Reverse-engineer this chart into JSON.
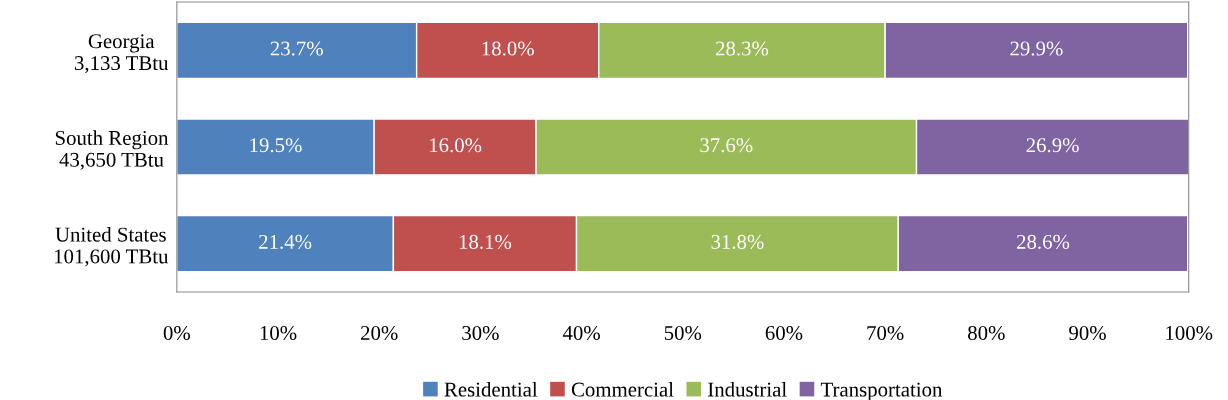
{
  "chart_data": {
    "type": "bar",
    "orientation": "horizontal",
    "stacked": true,
    "categories": [
      "Georgia\n3,133 TBtu",
      "South Region\n43,650 TBtu",
      "United States\n101,600 TBtu"
    ],
    "series": [
      {
        "name": "Residential",
        "color": "#4f81bd",
        "values": [
          23.7,
          19.5,
          21.4
        ],
        "value_labels": [
          "23.7%",
          "19.5%",
          "21.4%"
        ]
      },
      {
        "name": "Commercial",
        "color": "#c0504d",
        "values": [
          18.0,
          16.0,
          18.1
        ],
        "value_labels": [
          "18.0%",
          "16.0%",
          "18.1%"
        ]
      },
      {
        "name": "Industrial",
        "color": "#9bbb59",
        "values": [
          28.3,
          37.6,
          31.8
        ],
        "value_labels": [
          "28.3%",
          "37.6%",
          "31.8%"
        ]
      },
      {
        "name": "Transportation",
        "color": "#8064a2",
        "values": [
          29.9,
          26.9,
          28.6
        ],
        "value_labels": [
          "29.9%",
          "26.9%",
          "28.6%"
        ]
      }
    ],
    "xlim": [
      0,
      100
    ],
    "xticks": [
      {
        "value": 0,
        "label": "0%"
      },
      {
        "value": 10,
        "label": "10%"
      },
      {
        "value": 20,
        "label": "20%"
      },
      {
        "value": 30,
        "label": "30%"
      },
      {
        "value": 40,
        "label": "40%"
      },
      {
        "value": 50,
        "label": "50%"
      },
      {
        "value": 60,
        "label": "60%"
      },
      {
        "value": 70,
        "label": "70%"
      },
      {
        "value": 80,
        "label": "80%"
      },
      {
        "value": 90,
        "label": "90%"
      },
      {
        "value": 100,
        "label": "100%"
      }
    ],
    "grid": false,
    "legend": "bottom"
  }
}
